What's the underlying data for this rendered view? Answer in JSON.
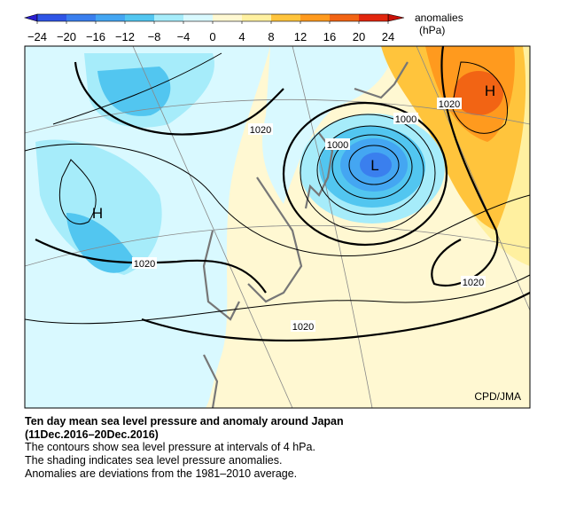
{
  "colorbar": {
    "ticks": [
      {
        "value": -24,
        "label": "−24"
      },
      {
        "value": -20,
        "label": "−20"
      },
      {
        "value": -16,
        "label": "−16"
      },
      {
        "value": -12,
        "label": "−12"
      },
      {
        "value": -8,
        "label": "−8"
      },
      {
        "value": -4,
        "label": "−4"
      },
      0,
      4,
      8,
      12,
      16,
      20,
      24
    ],
    "colors": [
      "#2a1ed0",
      "#2f55e6",
      "#3a7fee",
      "#44a6f2",
      "#52c6f0",
      "#a6ecfa",
      "#d9f9ff",
      "#fff8d2",
      "#fff0a0",
      "#ffc43c",
      "#ff9a1e",
      "#f26414",
      "#e2260e",
      "#c81008"
    ],
    "label": "anomalies",
    "unit": "(hPa)"
  },
  "map": {
    "contour_labels": [
      "1020",
      "1000",
      "1000",
      "1020",
      "1020",
      "1020",
      "1020"
    ],
    "pressure_centers": [
      "H",
      "L",
      "H"
    ],
    "credit": "CPD/JMA"
  },
  "caption": {
    "title": "Ten day mean sea level pressure and anomaly around Japan",
    "period": "(11Dec.2016–20Dec.2016)",
    "lines": [
      "The contours show sea level pressure at intervals of 4 hPa.",
      "The shading indicates sea level pressure anomalies.",
      "Anomalies are deviations from the 1981–2010 average."
    ]
  }
}
